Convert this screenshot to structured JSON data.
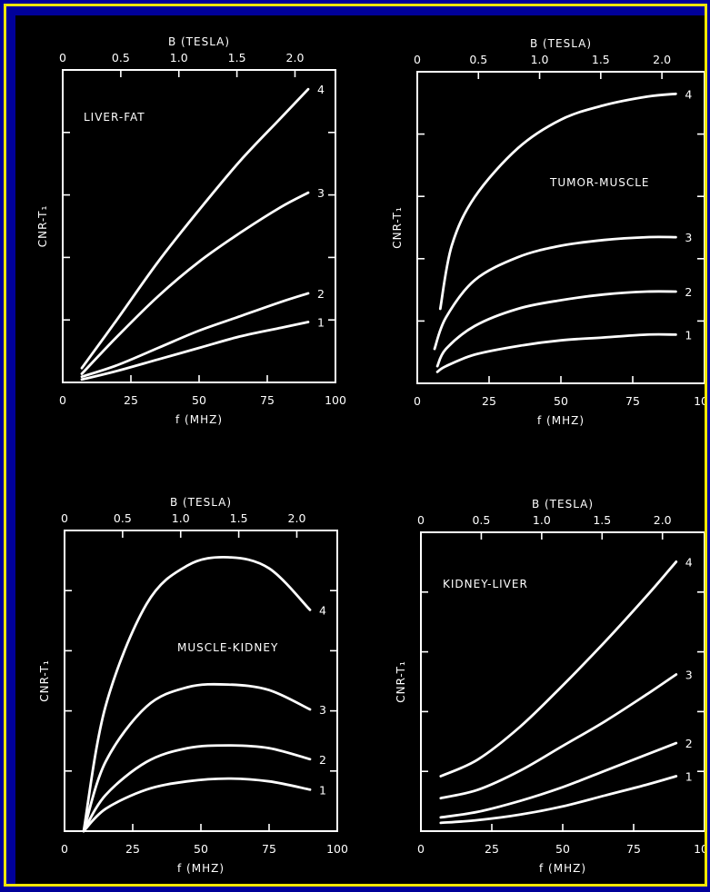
{
  "theme": {
    "background": "#000000",
    "border_outer": "#00009a",
    "border_inner": "#f2e600",
    "foreground": "#ffffff"
  },
  "chart_data": [
    {
      "type": "line",
      "title": "LIVER-FAT",
      "xlabel": "f (MHZ)",
      "ylabel": "CNR-T₁",
      "top_axis_label": "B (TESLA)",
      "xlim": [
        0,
        100
      ],
      "x_ticks": [
        "0",
        "25",
        "50",
        "75",
        "100"
      ],
      "top_ticks": [
        "0",
        "0.5",
        "1.0",
        "1.5",
        "2.0"
      ],
      "ylim": [
        0,
        1
      ],
      "series": [
        {
          "name": "1",
          "x": [
            7,
            20,
            35,
            50,
            65,
            80,
            90
          ],
          "y": [
            0.01,
            0.04,
            0.08,
            0.12,
            0.16,
            0.19,
            0.21
          ]
        },
        {
          "name": "2",
          "x": [
            7,
            20,
            35,
            50,
            65,
            80,
            90
          ],
          "y": [
            0.02,
            0.06,
            0.12,
            0.18,
            0.23,
            0.28,
            0.31
          ]
        },
        {
          "name": "3",
          "x": [
            7,
            20,
            35,
            50,
            65,
            80,
            90
          ],
          "y": [
            0.03,
            0.16,
            0.3,
            0.42,
            0.52,
            0.61,
            0.66
          ]
        },
        {
          "name": "4",
          "x": [
            7,
            20,
            35,
            50,
            65,
            80,
            90
          ],
          "y": [
            0.05,
            0.22,
            0.42,
            0.6,
            0.77,
            0.92,
            1.02
          ]
        }
      ]
    },
    {
      "type": "line",
      "title": "TUMOR-MUSCLE",
      "xlabel": "f (MHZ)",
      "ylabel": "CNR-T₁",
      "top_axis_label": "B (TESLA)",
      "xlim": [
        0,
        100
      ],
      "x_ticks": [
        "0",
        "25",
        "50",
        "75",
        "100"
      ],
      "top_ticks": [
        "0",
        "0.5",
        "1.0",
        "1.5",
        "2.0"
      ],
      "ylim": [
        0,
        1
      ],
      "series": [
        {
          "name": "1",
          "x": [
            7,
            10,
            20,
            35,
            50,
            65,
            80,
            90
          ],
          "y": [
            0.04,
            0.06,
            0.1,
            0.13,
            0.15,
            0.16,
            0.17,
            0.17
          ]
        },
        {
          "name": "2",
          "x": [
            7,
            10,
            20,
            35,
            50,
            65,
            80,
            90
          ],
          "y": [
            0.06,
            0.12,
            0.2,
            0.26,
            0.29,
            0.31,
            0.32,
            0.32
          ]
        },
        {
          "name": "3",
          "x": [
            6,
            10,
            20,
            35,
            50,
            65,
            80,
            90
          ],
          "y": [
            0.12,
            0.23,
            0.36,
            0.44,
            0.48,
            0.5,
            0.51,
            0.51
          ]
        },
        {
          "name": "4",
          "x": [
            8,
            12,
            20,
            35,
            50,
            65,
            80,
            90
          ],
          "y": [
            0.26,
            0.48,
            0.65,
            0.82,
            0.92,
            0.97,
            1.0,
            1.01
          ]
        }
      ]
    },
    {
      "type": "line",
      "title": "MUSCLE-KIDNEY",
      "xlabel": "f (MHZ)",
      "ylabel": "CNR-T₁",
      "top_axis_label": "B (TESLA)",
      "xlim": [
        0,
        100
      ],
      "x_ticks": [
        "0",
        "25",
        "50",
        "75",
        "100"
      ],
      "top_ticks": [
        "0",
        "0.5",
        "1.0",
        "1.5",
        "2.0"
      ],
      "ylim": [
        0,
        1
      ],
      "series": [
        {
          "name": "1",
          "x": [
            7,
            15,
            30,
            45,
            60,
            75,
            90
          ],
          "y": [
            0.0,
            0.08,
            0.15,
            0.18,
            0.19,
            0.18,
            0.15
          ]
        },
        {
          "name": "2",
          "x": [
            7,
            15,
            30,
            45,
            60,
            75,
            90
          ],
          "y": [
            0.0,
            0.13,
            0.25,
            0.3,
            0.31,
            0.3,
            0.26
          ]
        },
        {
          "name": "3",
          "x": [
            7,
            15,
            30,
            45,
            60,
            75,
            90
          ],
          "y": [
            0.0,
            0.25,
            0.45,
            0.52,
            0.53,
            0.51,
            0.44
          ]
        },
        {
          "name": "4",
          "x": [
            7,
            15,
            30,
            45,
            60,
            75,
            90
          ],
          "y": [
            0.0,
            0.45,
            0.82,
            0.96,
            0.99,
            0.95,
            0.8
          ]
        }
      ]
    },
    {
      "type": "line",
      "title": "KIDNEY-LIVER",
      "xlabel": "f (MHZ)",
      "ylabel": "CNR-T₁",
      "top_axis_label": "B (TESLA)",
      "xlim": [
        0,
        100
      ],
      "x_ticks": [
        "0",
        "25",
        "50",
        "75",
        "100"
      ],
      "top_ticks": [
        "0",
        "0.5",
        "1.0",
        "1.5",
        "2.0"
      ],
      "ylim": [
        0,
        1
      ],
      "series": [
        {
          "name": "1",
          "x": [
            7,
            20,
            35,
            50,
            65,
            80,
            90
          ],
          "y": [
            0.03,
            0.04,
            0.06,
            0.09,
            0.13,
            0.17,
            0.2
          ]
        },
        {
          "name": "2",
          "x": [
            7,
            20,
            35,
            50,
            65,
            80,
            90
          ],
          "y": [
            0.05,
            0.07,
            0.11,
            0.16,
            0.22,
            0.28,
            0.32
          ]
        },
        {
          "name": "3",
          "x": [
            7,
            20,
            35,
            50,
            65,
            80,
            90
          ],
          "y": [
            0.12,
            0.15,
            0.22,
            0.31,
            0.4,
            0.5,
            0.57
          ]
        },
        {
          "name": "4",
          "x": [
            7,
            20,
            35,
            50,
            65,
            80,
            90
          ],
          "y": [
            0.2,
            0.26,
            0.38,
            0.53,
            0.69,
            0.86,
            0.98
          ]
        }
      ]
    }
  ]
}
